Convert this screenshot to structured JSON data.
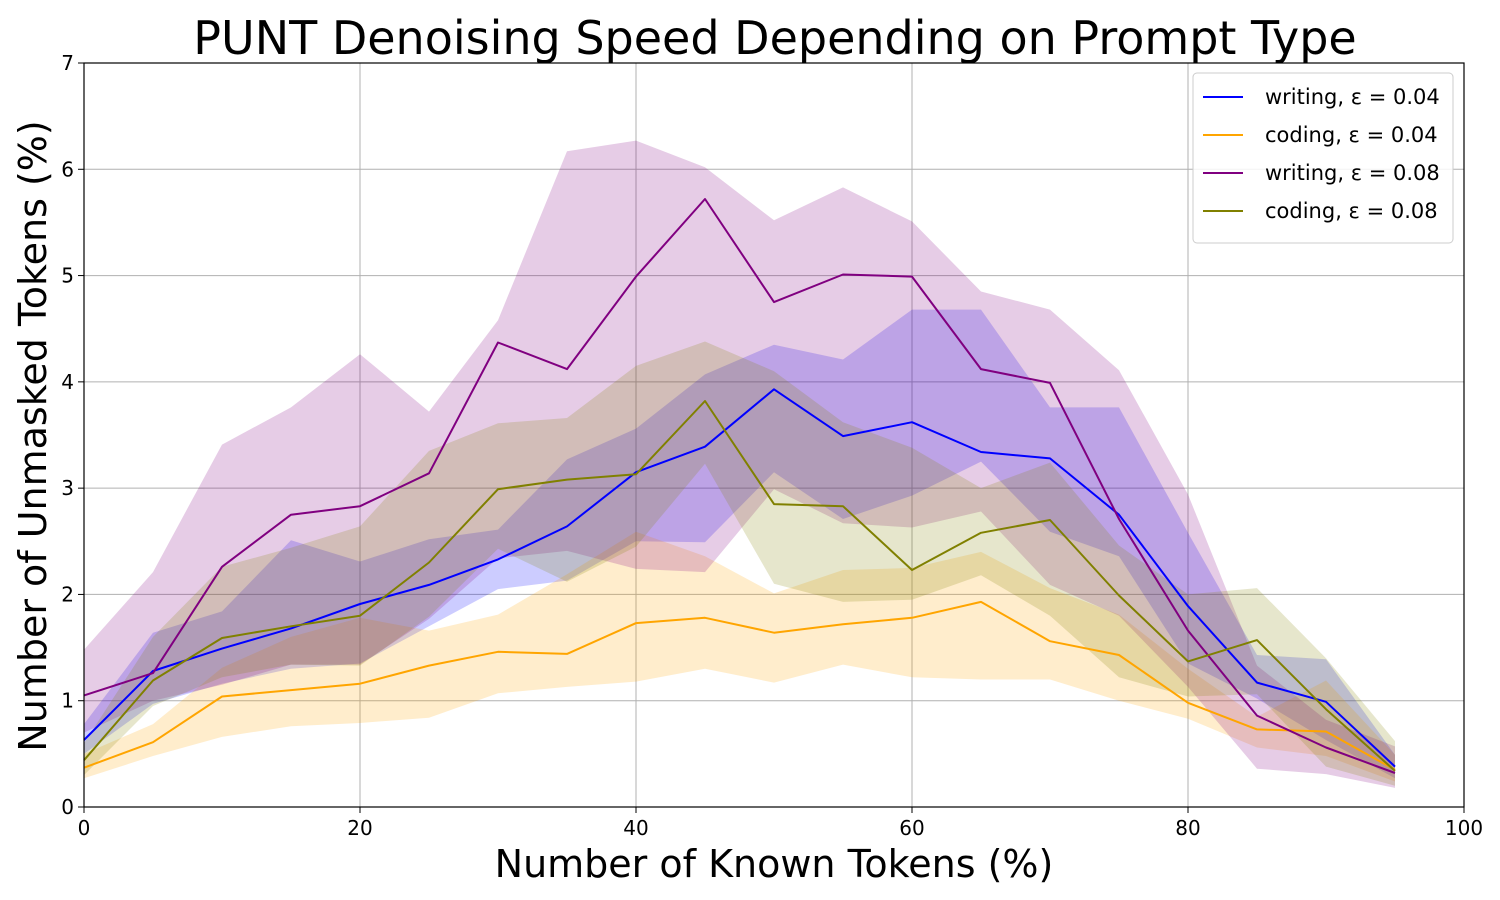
{
  "chart_data": {
    "type": "line",
    "title": "PUNT Denoising Speed Depending on Prompt Type",
    "xlabel": "Number of Known Tokens (%)",
    "ylabel": "Number of Unmasked Tokens (%)",
    "xlim": [
      0,
      100
    ],
    "ylim": [
      0,
      7
    ],
    "x_ticks": [
      0,
      20,
      40,
      60,
      80,
      100
    ],
    "y_ticks": [
      0,
      1,
      2,
      3,
      4,
      5,
      6,
      7
    ],
    "grid": true,
    "legend_position": "top-right",
    "x": [
      0,
      5,
      10,
      15,
      20,
      25,
      30,
      35,
      40,
      45,
      50,
      55,
      60,
      65,
      70,
      75,
      80,
      85,
      90,
      95
    ],
    "series": [
      {
        "name": "writing, ε = 0.04",
        "color": "#0000ff",
        "band_color": "#0000ff",
        "band_opacity": 0.2,
        "values": [
          0.63,
          1.28,
          1.49,
          1.68,
          1.91,
          2.09,
          2.33,
          2.64,
          3.15,
          3.39,
          3.93,
          3.49,
          3.62,
          3.34,
          3.28,
          2.75,
          1.89,
          1.17,
          0.99,
          0.38
        ],
        "upper": [
          0.78,
          1.64,
          1.84,
          2.51,
          2.31,
          2.52,
          2.61,
          3.27,
          3.56,
          4.07,
          4.35,
          4.21,
          4.68,
          4.68,
          3.76,
          3.76,
          2.58,
          1.43,
          1.39,
          0.49
        ],
        "lower": [
          0.5,
          0.97,
          1.16,
          1.3,
          1.35,
          1.7,
          2.05,
          2.13,
          2.5,
          2.49,
          3.15,
          2.71,
          2.93,
          3.25,
          2.59,
          2.36,
          1.35,
          1.02,
          0.63,
          0.27
        ]
      },
      {
        "name": "coding, ε = 0.04",
        "color": "#ffa500",
        "band_color": "#ffa500",
        "band_opacity": 0.2,
        "values": [
          0.37,
          0.61,
          1.04,
          1.1,
          1.16,
          1.33,
          1.46,
          1.44,
          1.73,
          1.78,
          1.64,
          1.72,
          1.78,
          1.93,
          1.56,
          1.43,
          0.98,
          0.73,
          0.71,
          0.35
        ],
        "upper": [
          0.5,
          0.78,
          1.31,
          1.6,
          1.78,
          1.66,
          1.81,
          2.19,
          2.59,
          2.36,
          2.01,
          2.23,
          2.25,
          2.4,
          2.06,
          1.81,
          1.3,
          0.85,
          1.19,
          0.49
        ],
        "lower": [
          0.27,
          0.48,
          0.66,
          0.76,
          0.79,
          0.84,
          1.07,
          1.13,
          1.18,
          1.3,
          1.17,
          1.34,
          1.22,
          1.2,
          1.2,
          1.0,
          0.83,
          0.56,
          0.48,
          0.24
        ]
      },
      {
        "name": "writing, ε = 0.08",
        "color": "#800080",
        "band_color": "#800080",
        "band_opacity": 0.2,
        "values": [
          1.05,
          1.26,
          2.26,
          2.75,
          2.83,
          3.14,
          4.37,
          4.12,
          4.99,
          5.72,
          4.75,
          5.01,
          4.99,
          4.12,
          3.99,
          2.71,
          1.66,
          0.86,
          0.56,
          0.32
        ],
        "upper": [
          1.48,
          2.21,
          3.41,
          3.76,
          4.26,
          3.72,
          4.58,
          6.17,
          6.27,
          6.02,
          5.52,
          5.83,
          5.51,
          4.85,
          4.68,
          4.11,
          2.94,
          1.33,
          0.82,
          0.57
        ],
        "lower": [
          0.7,
          1.0,
          1.15,
          1.34,
          1.34,
          1.77,
          2.34,
          2.41,
          2.24,
          2.21,
          2.99,
          2.67,
          2.63,
          2.78,
          2.09,
          1.8,
          1.13,
          0.36,
          0.31,
          0.18
        ]
      },
      {
        "name": "coding, ε = 0.08",
        "color": "#808000",
        "band_color": "#808000",
        "band_opacity": 0.2,
        "values": [
          0.44,
          1.19,
          1.59,
          1.7,
          1.8,
          2.3,
          2.99,
          3.08,
          3.13,
          3.82,
          2.85,
          2.83,
          2.23,
          2.58,
          2.7,
          1.99,
          1.37,
          1.57,
          0.92,
          0.34
        ],
        "upper": [
          0.6,
          1.6,
          2.26,
          2.44,
          2.64,
          3.35,
          3.61,
          3.66,
          4.15,
          4.38,
          4.1,
          3.62,
          3.38,
          3.0,
          3.24,
          2.46,
          2.0,
          2.06,
          1.4,
          0.62
        ],
        "lower": [
          0.3,
          0.95,
          1.22,
          1.34,
          1.33,
          1.79,
          2.43,
          2.12,
          2.45,
          3.23,
          2.1,
          1.93,
          1.95,
          2.18,
          1.8,
          1.22,
          1.04,
          1.06,
          0.38,
          0.2
        ]
      }
    ]
  }
}
